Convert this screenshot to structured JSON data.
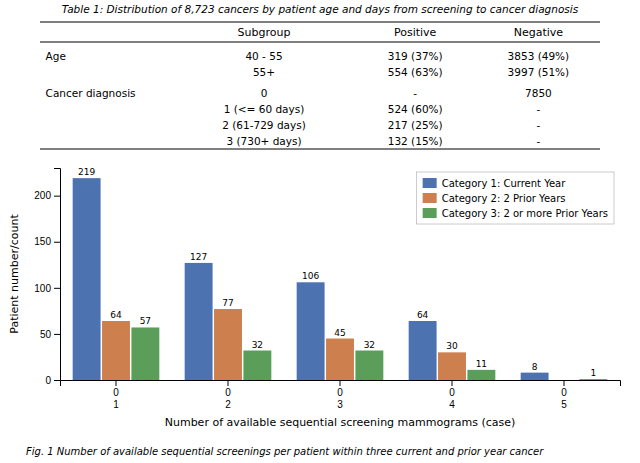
{
  "chart_data": [
    {
      "type": "table",
      "title": "Table 1: Distribution of 8,723 cancers by patient age and days from screening to cancer diagnosis",
      "columns": [
        null,
        "Subgroup",
        "Positive",
        "Negative"
      ],
      "rows": [
        [
          "Age",
          "40 - 55",
          "319 (37%)",
          "3853 (49%)"
        ],
        [
          null,
          "55+",
          "554 (63%)",
          "3997 (51%)"
        ],
        [
          "Cancer diagnosis",
          "0",
          "-",
          "7850"
        ],
        [
          null,
          "1 (<= 60 days)",
          "524 (60%)",
          "-"
        ],
        [
          null,
          "2 (61-729 days)",
          "217 (25%)",
          "-"
        ],
        [
          null,
          "3 (730+ days)",
          "132 (15%)",
          "-"
        ]
      ]
    },
    {
      "type": "bar",
      "categories": [
        "0\n1",
        "0\n2",
        "0\n3",
        "0\n4",
        "0\n5"
      ],
      "series": [
        {
          "name": "Category 1: Current Year",
          "color": "#4c72b0",
          "values": [
            219,
            127,
            106,
            64,
            8
          ]
        },
        {
          "name": "Category 2: 2 Prior Years",
          "color": "#cd7f4e",
          "values": [
            64,
            77,
            45,
            30,
            0
          ],
          "value_labels": [
            "64",
            "77",
            "45",
            "30",
            null
          ]
        },
        {
          "name": "Category 3: 2 or more Prior Years",
          "color": "#5a9e5a",
          "values": [
            57,
            32,
            32,
            11,
            1
          ]
        }
      ],
      "xlabel": "Number of available sequential screening mammograms (case)",
      "ylabel": "Patient number/count",
      "ylim": [
        0,
        230
      ],
      "yticks": [
        0,
        50,
        100,
        150,
        200
      ],
      "data_labels": true,
      "legend": "upper right",
      "caption": "Fig. 1 Number of available sequential screenings per patient within three current and prior year cancer"
    }
  ]
}
